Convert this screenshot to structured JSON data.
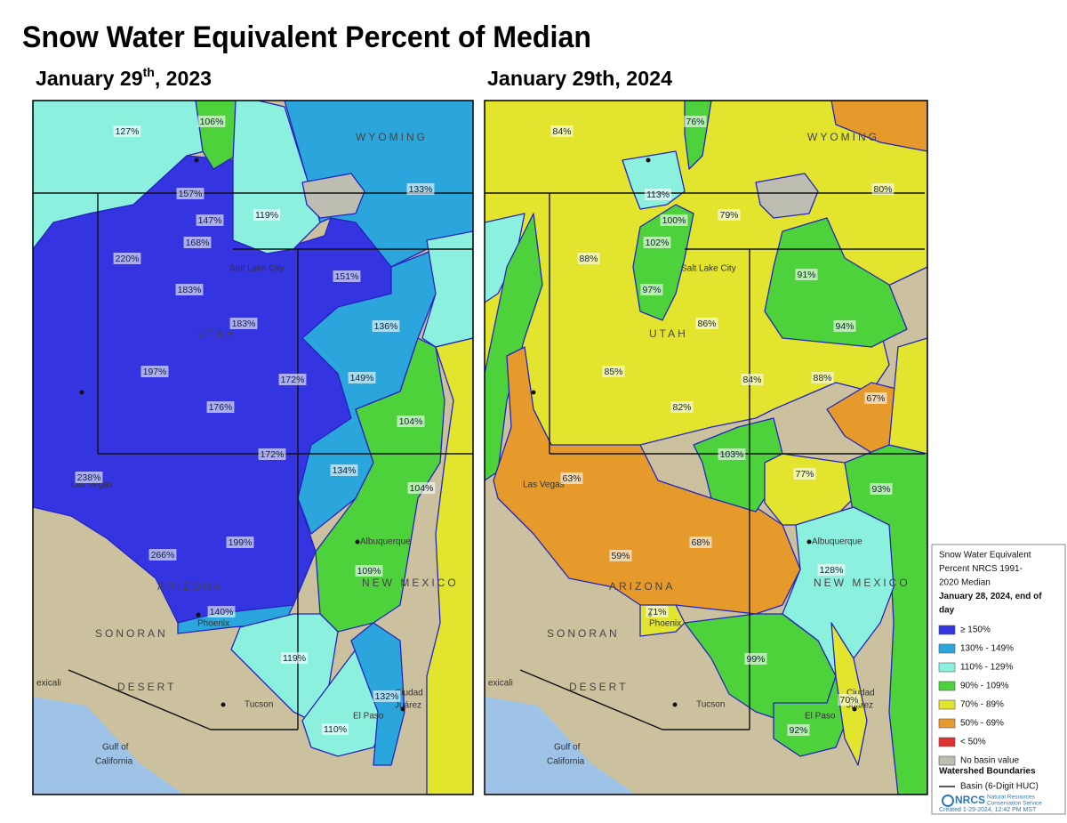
{
  "title": "Snow Water Equivalent Percent of Median",
  "panels": [
    {
      "heading": {
        "main": "January 29",
        "sup": "th",
        "rest": ", 2023"
      },
      "basins": [
        "127%",
        "106%",
        "157%",
        "147%",
        "119%",
        "133%",
        "168%",
        "220%",
        "183%",
        "151%",
        "183%",
        "136%",
        "197%",
        "172%",
        "149%",
        "176%",
        "104%",
        "172%",
        "238%",
        "134%",
        "104%",
        "199%",
        "266%",
        "109%",
        "140%",
        "119%",
        "132%",
        "110%"
      ]
    },
    {
      "heading": "January 29th, 2024",
      "basins": [
        "84%",
        "76%",
        "80%",
        "113%",
        "100%",
        "79%",
        "102%",
        "88%",
        "97%",
        "91%",
        "86%",
        "94%",
        "85%",
        "84%",
        "88%",
        "82%",
        "67%",
        "103%",
        "63%",
        "77%",
        "93%",
        "68%",
        "59%",
        "128%",
        "71%",
        "99%",
        "70%",
        "92%"
      ]
    }
  ],
  "places": [
    "WYOMING",
    "Salt Lake City",
    "UTAH",
    "Las Vegas",
    "ARIZONA",
    "Phoenix",
    "Tucson",
    "Albuquerque",
    "NEW MEXICO",
    "El Paso",
    "Ciudad",
    "Juárez",
    "Gulf of",
    "California",
    "SONORAN",
    "DESERT",
    "exicali"
  ],
  "legend": {
    "title": [
      "Snow Water Equivalent",
      "Percent NRCS 1991-",
      "2020 Median",
      "January 28, 2024, end of",
      "day"
    ],
    "items": [
      {
        "label": "≥ 150%",
        "color": "#3434e0"
      },
      {
        "label": "130% - 149%",
        "color": "#2aa6dc"
      },
      {
        "label": "110% - 129%",
        "color": "#8cf0df"
      },
      {
        "label": "90% - 109%",
        "color": "#4ed23c"
      },
      {
        "label": "70% - 89%",
        "color": "#e2e42e"
      },
      {
        "label": "50% - 69%",
        "color": "#e69a2c"
      },
      {
        "label": "< 50%",
        "color": "#e03030"
      },
      {
        "label": "No basin value",
        "color": "#bdbdb2"
      }
    ],
    "boundaries_title": "Watershed Boundaries",
    "boundary_item": "Basin (6-Digit HUC)",
    "agency": "NRCS",
    "agency_full": [
      "Natural Resources",
      "Conservation Service"
    ],
    "created": "Created 1-29-2024, 12:42 PM MST"
  }
}
